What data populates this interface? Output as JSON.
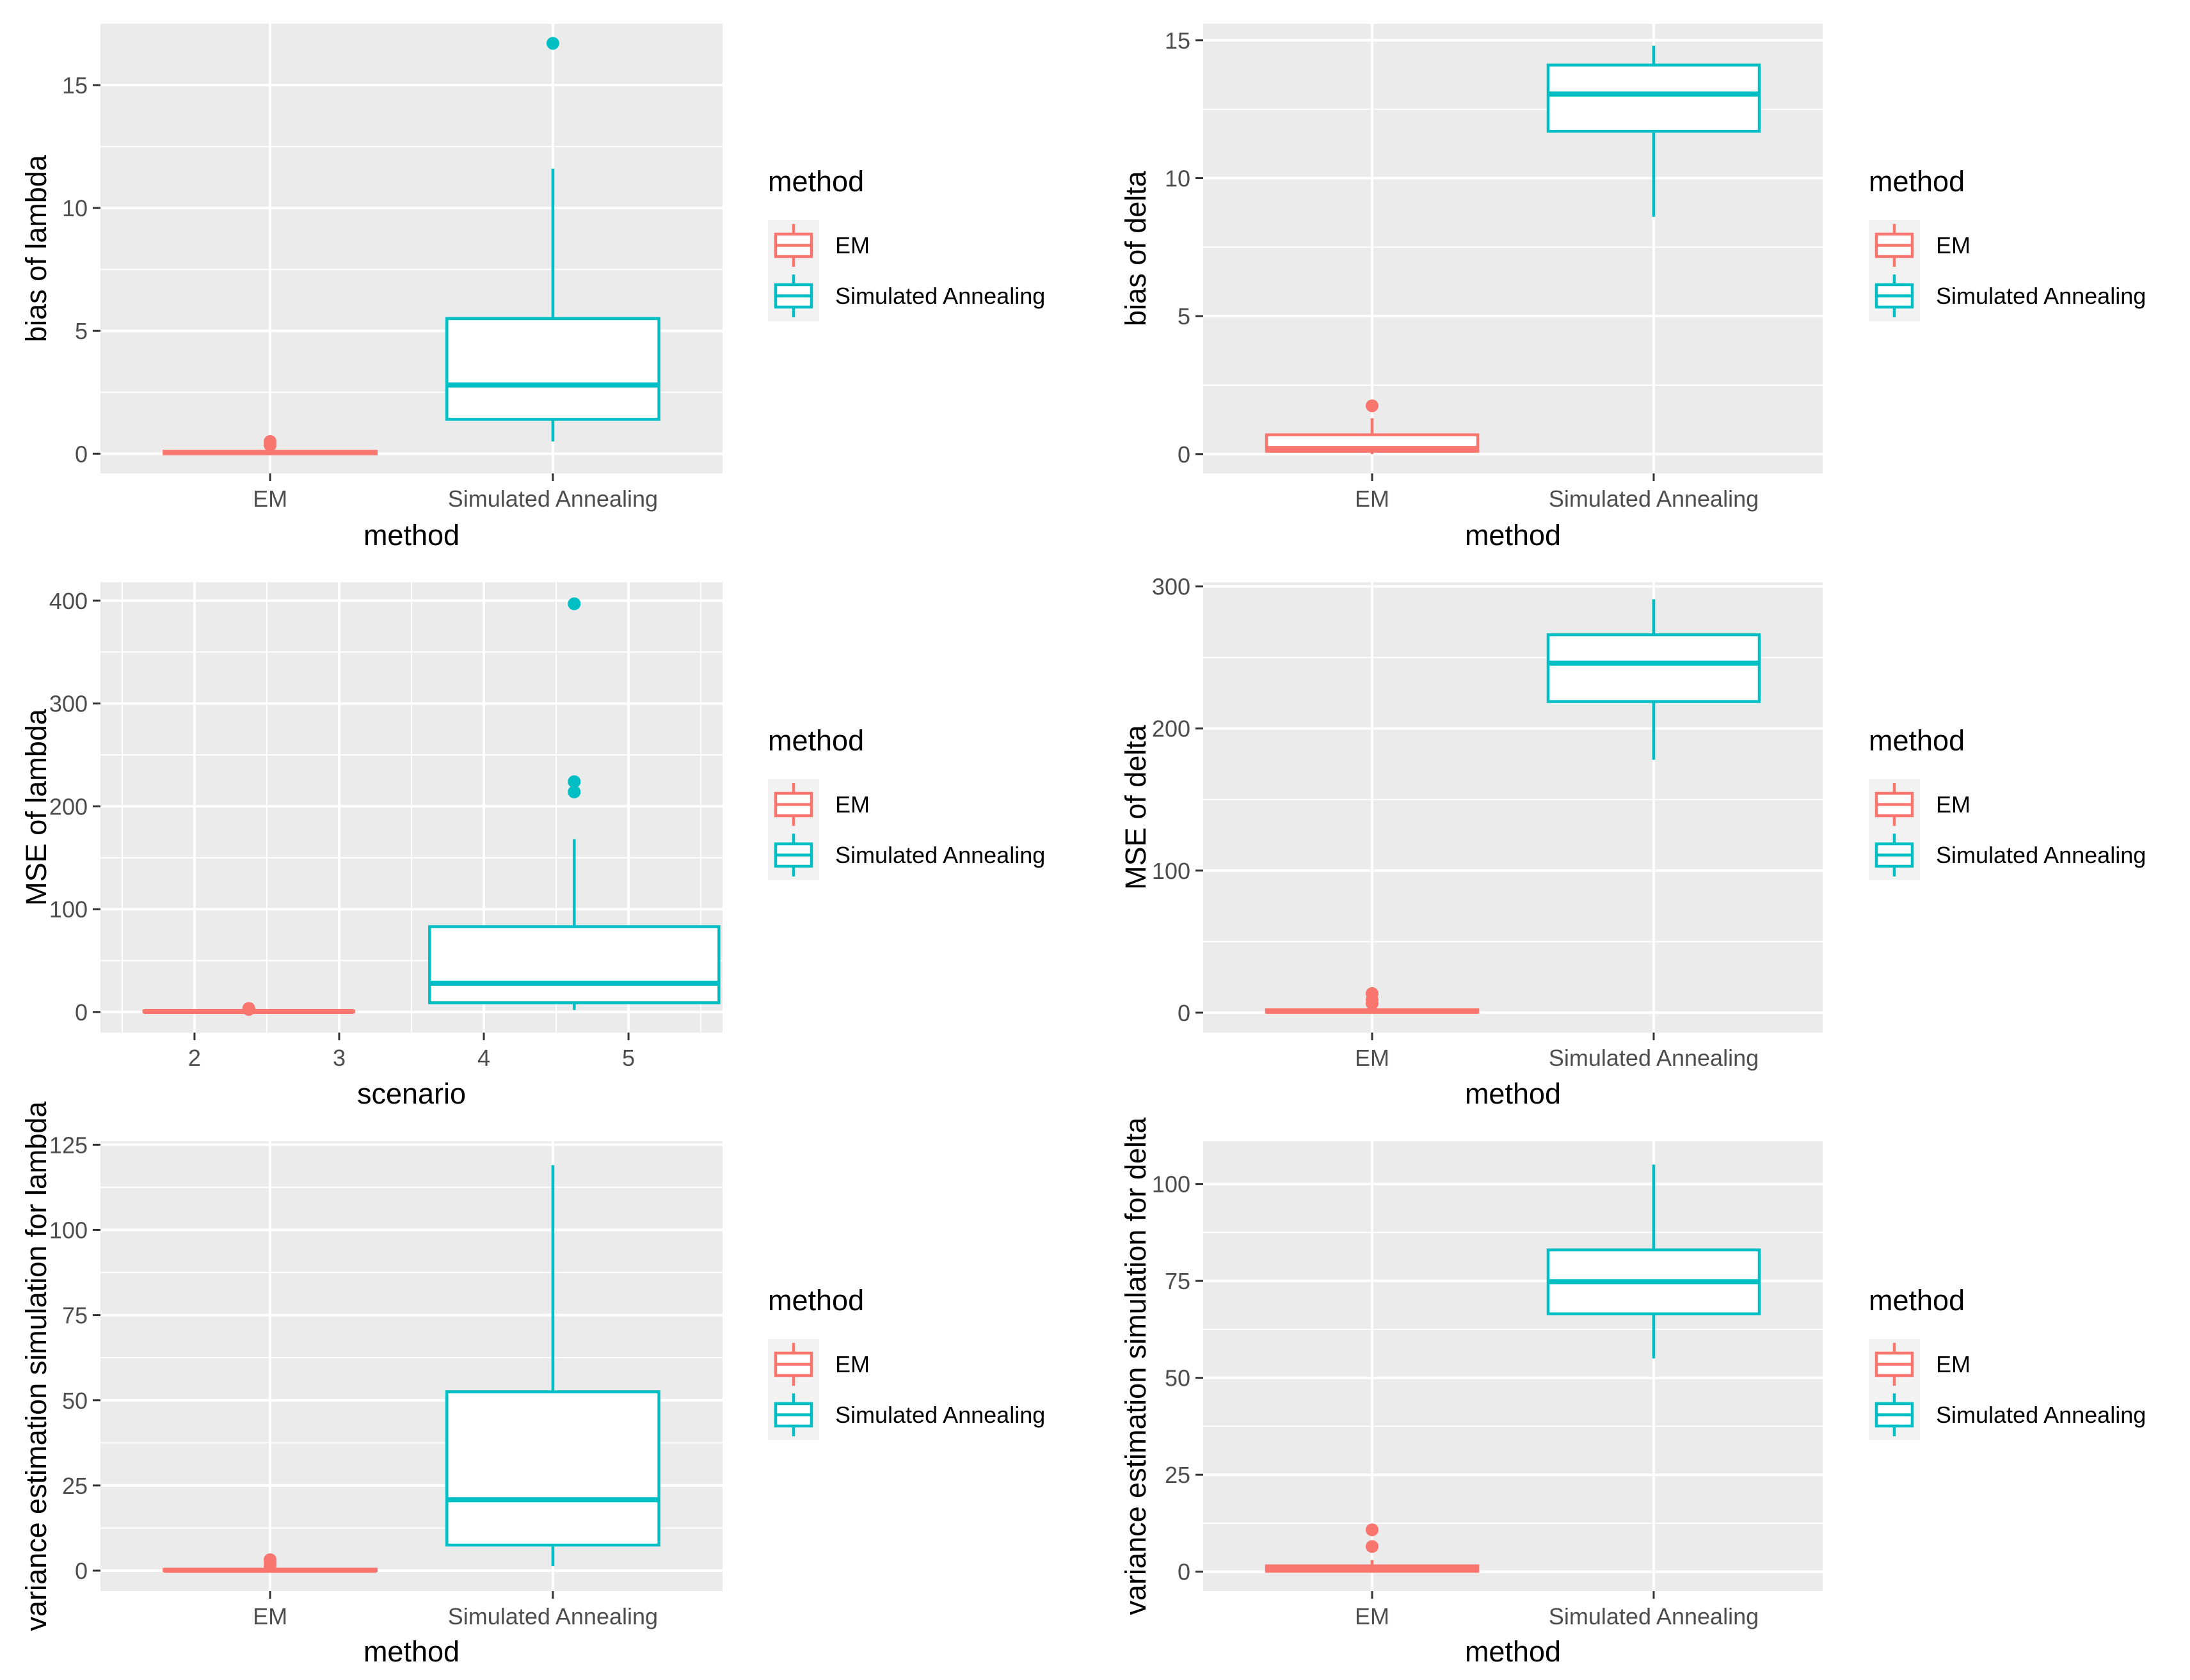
{
  "figure": {
    "title": ""
  },
  "legend": {
    "title": "method",
    "entries": [
      {
        "label": "EM",
        "color": "#F8766D"
      },
      {
        "label": "Simulated Annealing",
        "color": "#00BFC4"
      }
    ]
  },
  "chart_data": [
    {
      "type": "box",
      "xlabel": "method",
      "ylabel": "bias of lambda",
      "categories": [
        "EM",
        "Simulated Annealing"
      ],
      "ylim": [
        -0.8,
        17.5
      ],
      "yticks": [
        0,
        5,
        10,
        15
      ],
      "minor_yticks": [
        2.5,
        7.5,
        12.5
      ],
      "grid": true,
      "legend_position": "right",
      "boxes": [
        {
          "category": "EM",
          "color": "#F8766D",
          "whisker_low": 0,
          "q1": 0,
          "median": 0.05,
          "q3": 0.1,
          "whisker_high": 0.2,
          "outliers": [
            0.35,
            0.5
          ]
        },
        {
          "category": "Simulated Annealing",
          "color": "#00BFC4",
          "whisker_low": 0.5,
          "q1": 1.4,
          "median": 2.8,
          "q3": 5.5,
          "whisker_high": 11.6,
          "outliers": [
            16.7
          ]
        }
      ]
    },
    {
      "type": "box",
      "xlabel": "method",
      "ylabel": "bias of delta",
      "categories": [
        "EM",
        "Simulated Annealing"
      ],
      "ylim": [
        -0.7,
        15.6
      ],
      "yticks": [
        0,
        5,
        10,
        15
      ],
      "minor_yticks": [
        2.5,
        7.5,
        12.5
      ],
      "grid": true,
      "legend_position": "right",
      "boxes": [
        {
          "category": "EM",
          "color": "#F8766D",
          "whisker_low": 0,
          "q1": 0.1,
          "median": 0.2,
          "q3": 0.7,
          "whisker_high": 1.3,
          "outliers": [
            1.75
          ]
        },
        {
          "category": "Simulated Annealing",
          "color": "#00BFC4",
          "whisker_low": 8.6,
          "q1": 11.7,
          "median": 13.05,
          "q3": 14.1,
          "whisker_high": 14.8,
          "outliers": []
        }
      ]
    },
    {
      "type": "box",
      "xlabel": "scenario",
      "ylabel": "MSE of lambda",
      "categories": [],
      "xlim": [
        1.35,
        5.65
      ],
      "xticks": [
        2,
        3,
        4,
        5
      ],
      "minor_xticks": [
        1.5,
        2.5,
        3.5,
        4.5,
        5.5
      ],
      "ylim": [
        -20,
        418
      ],
      "yticks": [
        0,
        100,
        200,
        300,
        400
      ],
      "minor_yticks": [
        50,
        150,
        250,
        350
      ],
      "grid": true,
      "legend_position": "right",
      "boxes": [
        {
          "category": "EM",
          "x_center": 2.375,
          "width": 1.45,
          "color": "#F8766D",
          "whisker_low": 0,
          "q1": 0.2,
          "median": 0.5,
          "q3": 1,
          "whisker_high": 2,
          "outliers": [
            2.5,
            3.5
          ]
        },
        {
          "category": "Simulated Annealing",
          "x_center": 4.625,
          "width": 2.0,
          "color": "#00BFC4",
          "whisker_low": 2,
          "q1": 9,
          "median": 28,
          "q3": 83,
          "whisker_high": 168,
          "outliers": [
            214,
            224,
            397
          ]
        }
      ]
    },
    {
      "type": "box",
      "xlabel": "method",
      "ylabel": "MSE of delta",
      "categories": [
        "EM",
        "Simulated Annealing"
      ],
      "ylim": [
        -14,
        303
      ],
      "yticks": [
        0,
        100,
        200,
        300
      ],
      "minor_yticks": [
        50,
        150,
        250
      ],
      "grid": true,
      "legend_position": "right",
      "boxes": [
        {
          "category": "EM",
          "color": "#F8766D",
          "whisker_low": 0,
          "q1": 0.2,
          "median": 1,
          "q3": 2,
          "whisker_high": 4,
          "outliers": [
            6.5,
            9,
            13.5
          ]
        },
        {
          "category": "Simulated Annealing",
          "color": "#00BFC4",
          "whisker_low": 178,
          "q1": 219,
          "median": 246,
          "q3": 266,
          "whisker_high": 291,
          "outliers": []
        }
      ]
    },
    {
      "type": "box",
      "xlabel": "method",
      "ylabel": "variance estimation simulation for lambda",
      "categories": [
        "EM",
        "Simulated Annealing"
      ],
      "ylim": [
        -6,
        126
      ],
      "yticks": [
        0,
        25,
        50,
        75,
        100,
        125
      ],
      "minor_yticks": [
        12.5,
        37.5,
        62.5,
        87.5,
        112.5
      ],
      "grid": true,
      "legend_position": "right",
      "boxes": [
        {
          "category": "EM",
          "color": "#F8766D",
          "whisker_low": 0,
          "q1": 0,
          "median": 0.1,
          "q3": 0.4,
          "whisker_high": 0.8,
          "outliers": [
            1.5,
            2.5,
            3.2
          ]
        },
        {
          "category": "Simulated Annealing",
          "color": "#00BFC4",
          "whisker_low": 1.3,
          "q1": 7.5,
          "median": 20.8,
          "q3": 52.5,
          "whisker_high": 119,
          "outliers": []
        }
      ]
    },
    {
      "type": "box",
      "xlabel": "method",
      "ylabel": "variance estimation simulation for delta",
      "categories": [
        "EM",
        "Simulated Annealing"
      ],
      "ylim": [
        -5,
        111
      ],
      "yticks": [
        0,
        25,
        50,
        75,
        100
      ],
      "minor_yticks": [
        12.5,
        37.5,
        62.5,
        87.5
      ],
      "grid": true,
      "legend_position": "right",
      "boxes": [
        {
          "category": "EM",
          "color": "#F8766D",
          "whisker_low": 0,
          "q1": 0.1,
          "median": 0.5,
          "q3": 1.5,
          "whisker_high": 3,
          "outliers": [
            6.5,
            10.8
          ]
        },
        {
          "category": "Simulated Annealing",
          "color": "#00BFC4",
          "whisker_low": 55,
          "q1": 66.5,
          "median": 74.8,
          "q3": 83,
          "whisker_high": 105,
          "outliers": []
        }
      ]
    }
  ]
}
